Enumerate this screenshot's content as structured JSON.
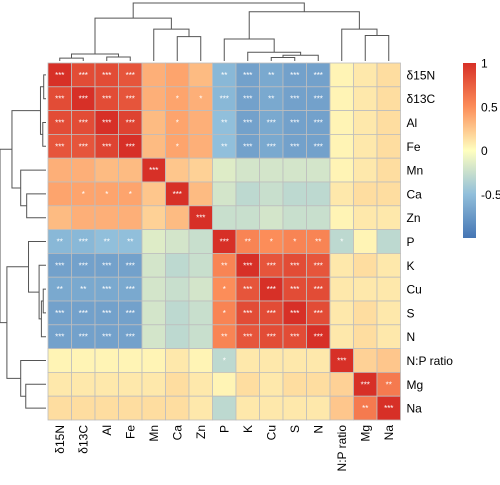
{
  "chart_data": {
    "type": "heatmap",
    "title": "",
    "xlabel": "",
    "ylabel": "",
    "variables": [
      "δ15N",
      "δ13C",
      "Al",
      "Fe",
      "Mn",
      "Ca",
      "Zn",
      "P",
      "K",
      "Cu",
      "S",
      "N",
      "N:P ratio",
      "Mg",
      "Na"
    ],
    "values": [
      [
        1.0,
        0.85,
        0.85,
        0.8,
        0.35,
        0.4,
        0.3,
        -0.55,
        -0.7,
        -0.65,
        -0.7,
        -0.7,
        0.05,
        0.1,
        0.15
      ],
      [
        0.85,
        1.0,
        0.85,
        0.8,
        0.35,
        0.4,
        0.35,
        -0.55,
        -0.7,
        -0.65,
        -0.7,
        -0.7,
        0.05,
        0.1,
        0.15
      ],
      [
        0.85,
        0.85,
        1.0,
        0.9,
        0.3,
        0.4,
        0.35,
        -0.5,
        -0.7,
        -0.65,
        -0.7,
        -0.7,
        0.05,
        0.1,
        0.15
      ],
      [
        0.8,
        0.8,
        0.9,
        1.0,
        0.3,
        0.4,
        0.35,
        -0.5,
        -0.7,
        -0.65,
        -0.7,
        -0.7,
        0.05,
        0.1,
        0.15
      ],
      [
        0.35,
        0.35,
        0.3,
        0.3,
        1.0,
        0.25,
        0.2,
        -0.15,
        -0.2,
        -0.2,
        -0.2,
        -0.2,
        0.05,
        0.1,
        0.15
      ],
      [
        0.4,
        0.4,
        0.4,
        0.4,
        0.25,
        1.0,
        0.3,
        -0.2,
        -0.3,
        -0.25,
        -0.3,
        -0.3,
        0.1,
        0.15,
        0.15
      ],
      [
        0.3,
        0.35,
        0.35,
        0.35,
        0.2,
        0.3,
        1.0,
        -0.25,
        -0.25,
        -0.2,
        -0.25,
        -0.25,
        0.05,
        0.1,
        0.1
      ],
      [
        -0.55,
        -0.55,
        -0.5,
        -0.5,
        -0.15,
        -0.2,
        -0.25,
        1.0,
        0.55,
        0.5,
        0.55,
        0.55,
        -0.3,
        0.05,
        -0.3
      ],
      [
        -0.7,
        -0.7,
        -0.7,
        -0.7,
        -0.2,
        -0.3,
        -0.25,
        0.55,
        1.0,
        0.8,
        0.85,
        0.8,
        0.1,
        0.15,
        0.1
      ],
      [
        -0.65,
        -0.65,
        -0.65,
        -0.65,
        -0.2,
        -0.25,
        -0.2,
        0.5,
        0.8,
        1.0,
        0.85,
        0.85,
        0.1,
        0.1,
        0.1
      ],
      [
        -0.7,
        -0.7,
        -0.7,
        -0.7,
        -0.2,
        -0.3,
        -0.25,
        0.55,
        0.85,
        0.85,
        1.0,
        0.85,
        0.1,
        0.15,
        0.1
      ],
      [
        -0.7,
        -0.7,
        -0.7,
        -0.7,
        -0.2,
        -0.3,
        -0.25,
        0.55,
        0.8,
        0.85,
        0.85,
        1.0,
        0.1,
        0.15,
        0.1
      ],
      [
        0.05,
        0.05,
        0.05,
        0.05,
        0.05,
        0.1,
        0.05,
        -0.3,
        0.1,
        0.1,
        0.1,
        0.1,
        1.0,
        0.2,
        0.25
      ],
      [
        0.1,
        0.1,
        0.1,
        0.1,
        0.1,
        0.15,
        0.1,
        0.05,
        0.15,
        0.1,
        0.15,
        0.15,
        0.2,
        1.0,
        0.6
      ],
      [
        0.15,
        0.15,
        0.15,
        0.15,
        0.15,
        0.15,
        0.1,
        -0.3,
        0.1,
        0.1,
        0.1,
        0.1,
        0.25,
        0.6,
        1.0
      ]
    ],
    "significance": [
      [
        "***",
        "***",
        "***",
        "***",
        "",
        "",
        "",
        "**",
        "***",
        "**",
        "***",
        "***",
        "",
        "",
        ""
      ],
      [
        "***",
        "***",
        "***",
        "***",
        "",
        "*",
        "*",
        "***",
        "***",
        "**",
        "***",
        "***",
        "",
        "",
        ""
      ],
      [
        "***",
        "***",
        "***",
        "***",
        "",
        "*",
        "",
        "**",
        "***",
        "***",
        "***",
        "***",
        "",
        "",
        ""
      ],
      [
        "***",
        "***",
        "***",
        "***",
        "",
        "*",
        "",
        "**",
        "***",
        "***",
        "***",
        "***",
        "",
        "",
        ""
      ],
      [
        "",
        "",
        "",
        "",
        "***",
        "",
        "",
        "",
        "",
        "",
        "",
        "",
        "",
        "",
        ""
      ],
      [
        "",
        "*",
        "*",
        "*",
        "",
        "***",
        "",
        "",
        "",
        "",
        "",
        "",
        "",
        "",
        ""
      ],
      [
        "",
        "",
        "",
        "",
        "",
        "",
        "***",
        "",
        "",
        "",
        "",
        "",
        "",
        "",
        ""
      ],
      [
        "**",
        "***",
        "**",
        "**",
        "",
        "",
        "",
        "***",
        "**",
        "*",
        "*",
        "**",
        "*",
        "",
        ""
      ],
      [
        "***",
        "***",
        "***",
        "***",
        "",
        "",
        "",
        "**",
        "***",
        "***",
        "***",
        "***",
        "",
        "",
        ""
      ],
      [
        "**",
        "**",
        "***",
        "***",
        "",
        "",
        "",
        "*",
        "***",
        "***",
        "***",
        "***",
        "",
        "",
        ""
      ],
      [
        "***",
        "***",
        "***",
        "***",
        "",
        "",
        "",
        "*",
        "***",
        "***",
        "***",
        "***",
        "",
        "",
        ""
      ],
      [
        "***",
        "***",
        "***",
        "***",
        "",
        "",
        "",
        "**",
        "***",
        "***",
        "***",
        "***",
        "",
        "",
        ""
      ],
      [
        "",
        "",
        "",
        "",
        "",
        "",
        "",
        "*",
        "",
        "",
        "",
        "",
        "***",
        "",
        ""
      ],
      [
        "",
        "",
        "",
        "",
        "",
        "",
        "",
        "",
        "",
        "",
        "",
        "",
        "",
        "***",
        "**"
      ],
      [
        "",
        "",
        "",
        "",
        "",
        "",
        "",
        "",
        "",
        "",
        "",
        "",
        "",
        "**",
        "***"
      ]
    ],
    "color_scale": {
      "range": [
        -1,
        1
      ],
      "stops": [
        {
          "value": -1,
          "color": "#4575b4"
        },
        {
          "value": -0.5,
          "color": "#91bfdb"
        },
        {
          "value": 0,
          "color": "#ffffbf"
        },
        {
          "value": 0.5,
          "color": "#fc8d59"
        },
        {
          "value": 1,
          "color": "#d73027"
        }
      ],
      "ticks": [
        {
          "value": 1,
          "label": "1"
        },
        {
          "value": 0.5,
          "label": "0.5"
        },
        {
          "value": 0,
          "label": "0"
        },
        {
          "value": -0.5,
          "label": "-0.5"
        }
      ]
    },
    "legend_position": "right",
    "row_dendrogram_position": "left",
    "column_dendrogram_position": "top",
    "cell_border_color": "#bdbdbd",
    "significance_text_color": "#ffffff",
    "dendrogram_color": "#555555"
  }
}
